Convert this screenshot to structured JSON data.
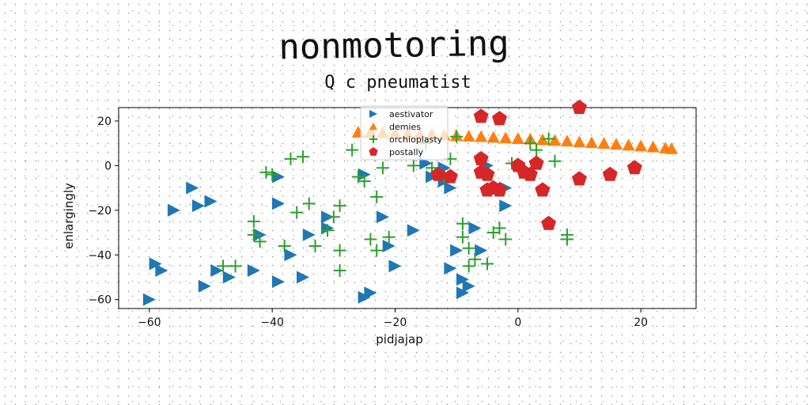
{
  "chart_data": {
    "type": "scatter",
    "title": "nonmotoring",
    "subtitle": "Q c pneumatist",
    "xlabel": "pidjajap",
    "ylabel": "enlargingly",
    "xlim": [
      -65,
      29
    ],
    "ylim": [
      -64,
      26
    ],
    "xticks": [
      -60,
      -40,
      -20,
      0,
      20
    ],
    "yticks": [
      -60,
      -40,
      -20,
      0,
      20
    ],
    "grid": false,
    "legend_position": "top-center",
    "series": [
      {
        "name": "aestivator",
        "marker": "triangle-right",
        "color": "#1f77b4",
        "points": [
          [
            -60,
            -60
          ],
          [
            -59,
            -44
          ],
          [
            -58,
            -47
          ],
          [
            -56,
            -20
          ],
          [
            -53,
            -10
          ],
          [
            -52,
            -18
          ],
          [
            -50,
            -16
          ],
          [
            -49,
            -47
          ],
          [
            -51,
            -54
          ],
          [
            -47,
            -50
          ],
          [
            -43,
            -47
          ],
          [
            -42,
            -31
          ],
          [
            -39,
            -5
          ],
          [
            -39,
            -17
          ],
          [
            -39,
            -52
          ],
          [
            -37,
            -40
          ],
          [
            -35,
            -50
          ],
          [
            -34,
            -31
          ],
          [
            -31,
            -28
          ],
          [
            -31,
            -23
          ],
          [
            -25,
            -4
          ],
          [
            -24,
            -57
          ],
          [
            -25,
            -59
          ],
          [
            -22,
            -23
          ],
          [
            -21,
            -36
          ],
          [
            -20,
            -45
          ],
          [
            -17,
            -29
          ],
          [
            -15,
            1
          ],
          [
            -14,
            -5
          ],
          [
            -12,
            -1
          ],
          [
            -12,
            -7
          ],
          [
            -11,
            -10
          ],
          [
            -11,
            -46
          ],
          [
            -10,
            -38
          ],
          [
            -9,
            -57
          ],
          [
            -9,
            -51
          ],
          [
            -8,
            -54
          ],
          [
            -7,
            -28
          ],
          [
            -6,
            -38
          ],
          [
            -5,
            0
          ],
          [
            -2,
            -10
          ],
          [
            -2,
            -18
          ]
        ]
      },
      {
        "name": "demies",
        "marker": "triangle-up",
        "color": "#ff7f0e",
        "points": [
          [
            -26,
            15
          ],
          [
            -24,
            15
          ],
          [
            -22,
            14.7
          ],
          [
            -20,
            14.5
          ],
          [
            -18,
            14.3
          ],
          [
            -16,
            14.1
          ],
          [
            -14,
            13.9
          ],
          [
            -12,
            13.7
          ],
          [
            -10,
            13.4
          ],
          [
            -8,
            13.2
          ],
          [
            -6,
            13
          ],
          [
            -4,
            12.7
          ],
          [
            -2,
            12.4
          ],
          [
            0,
            12.1
          ],
          [
            2,
            11.9
          ],
          [
            4,
            11.6
          ],
          [
            6,
            11.3
          ],
          [
            8,
            11
          ],
          [
            10,
            10.6
          ],
          [
            12,
            10.3
          ],
          [
            14,
            10
          ],
          [
            16,
            9.6
          ],
          [
            18,
            9.2
          ],
          [
            20,
            8.8
          ],
          [
            22,
            8.4
          ],
          [
            24,
            7.9
          ],
          [
            25,
            7.6
          ]
        ]
      },
      {
        "name": "orchioplasty",
        "marker": "plus",
        "color": "#2ca02c",
        "points": [
          [
            -48,
            -45
          ],
          [
            -46,
            -45
          ],
          [
            -43,
            -25
          ],
          [
            -43,
            -31
          ],
          [
            -42,
            -34
          ],
          [
            -41,
            -3
          ],
          [
            -40,
            -4
          ],
          [
            -38,
            -36
          ],
          [
            -37,
            3
          ],
          [
            -35,
            4
          ],
          [
            -36,
            -21
          ],
          [
            -34,
            -17
          ],
          [
            -33,
            -36
          ],
          [
            -31,
            -29
          ],
          [
            -30,
            -23
          ],
          [
            -29,
            -18
          ],
          [
            -29,
            -38
          ],
          [
            -29,
            -47
          ],
          [
            -27,
            7
          ],
          [
            -26,
            -5
          ],
          [
            -25,
            -7
          ],
          [
            -24,
            -33
          ],
          [
            -23,
            -38
          ],
          [
            -23,
            -14
          ],
          [
            -22,
            -1
          ],
          [
            -21,
            -32
          ],
          [
            -17,
            0
          ],
          [
            -15,
            10
          ],
          [
            -14,
            -1
          ],
          [
            -12,
            -5
          ],
          [
            -11,
            3
          ],
          [
            -10,
            13
          ],
          [
            -9,
            -26
          ],
          [
            -9,
            -32
          ],
          [
            -8,
            -37
          ],
          [
            -8,
            -45
          ],
          [
            -7,
            -42
          ],
          [
            -5,
            -44
          ],
          [
            -4,
            -30
          ],
          [
            -3,
            -28
          ],
          [
            -2,
            -33
          ],
          [
            -1,
            1
          ],
          [
            2,
            10
          ],
          [
            3,
            7
          ],
          [
            5,
            12
          ],
          [
            6,
            2
          ],
          [
            8,
            -31
          ],
          [
            8,
            -33
          ]
        ]
      },
      {
        "name": "postally",
        "marker": "pentagon",
        "color": "#d62728",
        "points": [
          [
            10,
            26
          ],
          [
            -6,
            22
          ],
          [
            -3,
            21
          ],
          [
            -13,
            -4
          ],
          [
            -11,
            -5
          ],
          [
            -6,
            -3
          ],
          [
            -6,
            3
          ],
          [
            -5,
            -4
          ],
          [
            -5,
            -11
          ],
          [
            -4,
            -10
          ],
          [
            -3,
            -11
          ],
          [
            0,
            0
          ],
          [
            1,
            -3
          ],
          [
            2,
            -4
          ],
          [
            3,
            1
          ],
          [
            4,
            -11
          ],
          [
            5,
            -26
          ],
          [
            10,
            -6
          ],
          [
            15,
            -4
          ],
          [
            19,
            -1
          ]
        ]
      }
    ]
  }
}
